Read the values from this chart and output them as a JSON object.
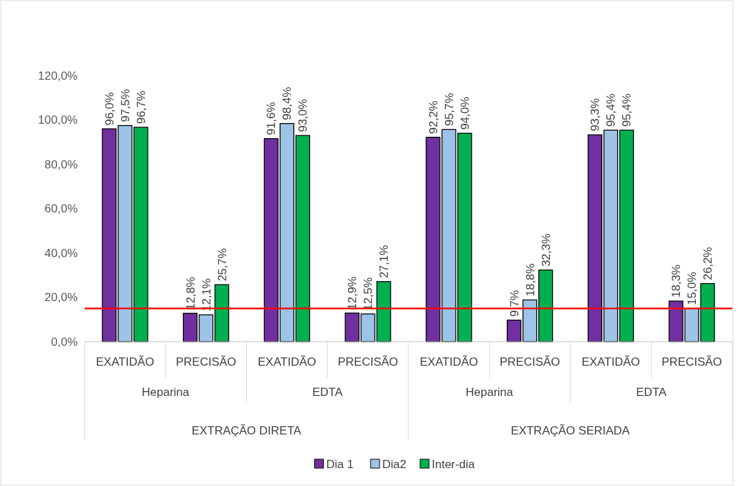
{
  "chart_data": {
    "type": "bar",
    "categories": [
      "EXATIDÃO",
      "PRECISÃO",
      "EXATIDÃO",
      "PRECISÃO",
      "EXATIDÃO",
      "PRECISÃO",
      "EXATIDÃO",
      "PRECISÃO"
    ],
    "series": [
      {
        "name": "Dia 1",
        "color": "#7030a0",
        "values": [
          96.0,
          12.8,
          91.6,
          12.9,
          92.2,
          9.7,
          93.3,
          18.3
        ],
        "value_labels": [
          "96,0%",
          "12,8%",
          "91,6%",
          "12,9%",
          "92,2%",
          "9,7%",
          "93,3%",
          "18,3%"
        ]
      },
      {
        "name": "Dia2",
        "color": "#9dc3e6",
        "values": [
          97.5,
          12.1,
          98.4,
          12.5,
          95.7,
          18.8,
          95.4,
          15.0
        ],
        "value_labels": [
          "97,5%",
          "12,1%",
          "98,4%",
          "12,5%",
          "95,7%",
          "18,8%",
          "95,4%",
          "15,0%"
        ]
      },
      {
        "name": "Inter-dia",
        "color": "#00b050",
        "values": [
          96.7,
          25.7,
          93.0,
          27.1,
          94.0,
          32.3,
          95.4,
          26.2
        ],
        "value_labels": [
          "96,7%",
          "25,7%",
          "93,0%",
          "27,1%",
          "94,0%",
          "32,3%",
          "95,4%",
          "26,2%"
        ]
      }
    ],
    "annotations": [
      "Heparina",
      "EDTA",
      "Heparina",
      "EDTA",
      "EXTRAÇÃO DIRETA",
      "EXTRAÇÃO SERIADA"
    ],
    "ylim": [
      0,
      120
    ],
    "yticks": [
      {
        "value": 0,
        "label": "0,0%"
      },
      {
        "value": 20,
        "label": "20,0%"
      },
      {
        "value": 40,
        "label": "40,0%"
      },
      {
        "value": 60,
        "label": "60,0%"
      },
      {
        "value": 80,
        "label": "80,0%"
      },
      {
        "value": 100,
        "label": "100,0%"
      },
      {
        "value": 120,
        "label": "120,0%"
      }
    ],
    "ref_lines": [
      {
        "axis": "y",
        "value": 15,
        "color": "#ff0000"
      }
    ],
    "grid": false,
    "legend": "bottom"
  }
}
